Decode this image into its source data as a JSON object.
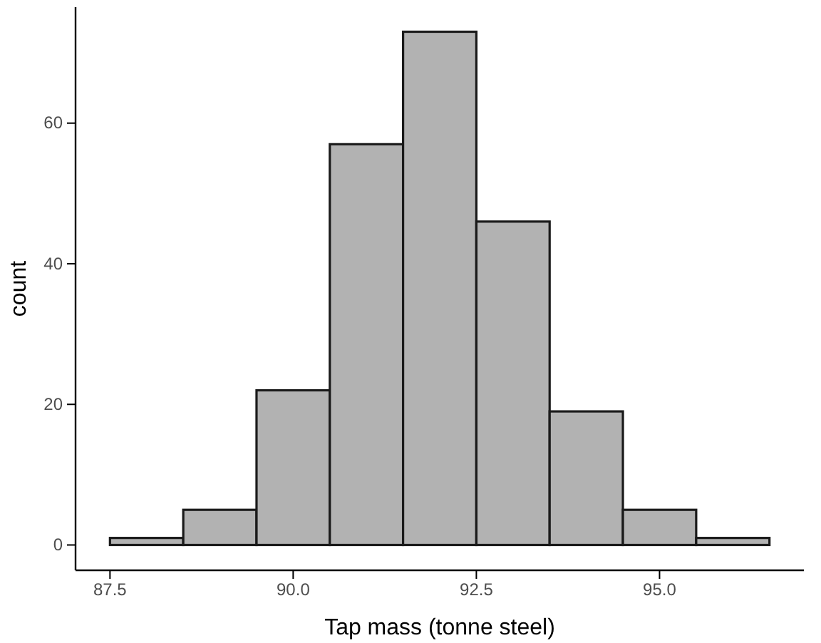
{
  "chart_data": {
    "type": "histogram",
    "xlabel": "Tap mass (tonne steel)",
    "ylabel": "count",
    "bins": [
      87.5,
      88.5,
      89.5,
      90.5,
      91.5,
      92.5,
      93.5,
      94.5,
      95.5,
      96.5
    ],
    "values": [
      1,
      5,
      22,
      57,
      73,
      46,
      19,
      5,
      1
    ],
    "color": "#b2b2b2",
    "xlim": [
      87.03,
      96.97
    ],
    "xticks": [
      {
        "value": 87.5,
        "label": "87.5"
      },
      {
        "value": 90,
        "label": "90.0"
      },
      {
        "value": 92.5,
        "label": "92.5"
      },
      {
        "value": 95,
        "label": "95.0"
      }
    ],
    "ylim": [
      -3.6,
      76.5
    ],
    "yticks": [
      0,
      20,
      40,
      60
    ],
    "grid": false
  }
}
